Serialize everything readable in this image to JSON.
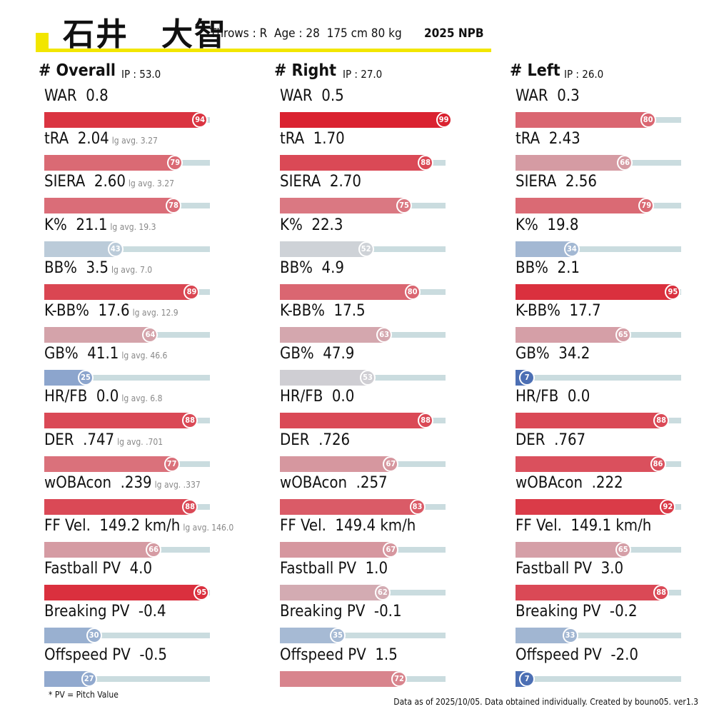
{
  "header": {
    "name": "石井　大智",
    "info": "Throws : R  Age : 28  175 cm 80 kg",
    "season": "2025 NPB"
  },
  "chart_data": {
    "type": "bar",
    "title": "石井　大智",
    "percentile_range": [
      0,
      100
    ],
    "columns": [
      {
        "title": "# Overall",
        "ip": "IP : 53.0",
        "metrics": [
          {
            "label": "WAR  0.8",
            "lg": "",
            "pct": 94
          },
          {
            "label": "tRA  2.04",
            "lg": "lg avg. 3.27",
            "pct": 79
          },
          {
            "label": "SIERA  2.60",
            "lg": "lg avg. 3.27",
            "pct": 78
          },
          {
            "label": "K%  21.1",
            "lg": "lg avg. 19.3",
            "pct": 43
          },
          {
            "label": "BB%  3.5",
            "lg": "lg avg. 7.0",
            "pct": 89
          },
          {
            "label": "K-BB%  17.6",
            "lg": "lg avg. 12.9",
            "pct": 64
          },
          {
            "label": "GB%  41.1",
            "lg": "lg avg. 46.6",
            "pct": 25
          },
          {
            "label": "HR/FB  0.0",
            "lg": "lg avg. 6.8",
            "pct": 88
          },
          {
            "label": "DER  .747",
            "lg": "lg avg. .701",
            "pct": 77
          },
          {
            "label": "wOBAcon  .239",
            "lg": "lg avg. .337",
            "pct": 88
          },
          {
            "label": "FF Vel.  149.2 km/h",
            "lg": "lg avg. 146.0",
            "pct": 66
          },
          {
            "label": "Fastball PV  4.0",
            "lg": "",
            "pct": 95
          },
          {
            "label": "Breaking PV  -0.4",
            "lg": "",
            "pct": 30
          },
          {
            "label": "Offspeed PV  -0.5",
            "lg": "",
            "pct": 27
          }
        ]
      },
      {
        "title": "# Right",
        "ip": "IP : 27.0",
        "metrics": [
          {
            "label": "WAR  0.5",
            "lg": "",
            "pct": 99
          },
          {
            "label": "tRA  1.70",
            "lg": "",
            "pct": 88
          },
          {
            "label": "SIERA  2.70",
            "lg": "",
            "pct": 75
          },
          {
            "label": "K%  22.3",
            "lg": "",
            "pct": 52
          },
          {
            "label": "BB%  4.9",
            "lg": "",
            "pct": 80
          },
          {
            "label": "K-BB%  17.5",
            "lg": "",
            "pct": 63
          },
          {
            "label": "GB%  47.9",
            "lg": "",
            "pct": 53
          },
          {
            "label": "HR/FB  0.0",
            "lg": "",
            "pct": 88
          },
          {
            "label": "DER  .726",
            "lg": "",
            "pct": 67
          },
          {
            "label": "wOBAcon  .257",
            "lg": "",
            "pct": 83
          },
          {
            "label": "FF Vel.  149.4 km/h",
            "lg": "",
            "pct": 67
          },
          {
            "label": "Fastball PV  1.0",
            "lg": "",
            "pct": 62
          },
          {
            "label": "Breaking PV  -0.1",
            "lg": "",
            "pct": 35
          },
          {
            "label": "Offspeed PV  1.5",
            "lg": "",
            "pct": 72
          }
        ]
      },
      {
        "title": "# Left",
        "ip": "IP : 26.0",
        "metrics": [
          {
            "label": "WAR  0.3",
            "lg": "",
            "pct": 80
          },
          {
            "label": "tRA  2.43",
            "lg": "",
            "pct": 66
          },
          {
            "label": "SIERA  2.56",
            "lg": "",
            "pct": 79
          },
          {
            "label": "K%  19.8",
            "lg": "",
            "pct": 34
          },
          {
            "label": "BB%  2.1",
            "lg": "",
            "pct": 95
          },
          {
            "label": "K-BB%  17.7",
            "lg": "",
            "pct": 65
          },
          {
            "label": "GB%  34.2",
            "lg": "",
            "pct": 7
          },
          {
            "label": "HR/FB  0.0",
            "lg": "",
            "pct": 88
          },
          {
            "label": "DER  .767",
            "lg": "",
            "pct": 86
          },
          {
            "label": "wOBAcon  .222",
            "lg": "",
            "pct": 92
          },
          {
            "label": "FF Vel.  149.1 km/h",
            "lg": "",
            "pct": 65
          },
          {
            "label": "Fastball PV  3.0",
            "lg": "",
            "pct": 88
          },
          {
            "label": "Breaking PV  -0.2",
            "lg": "",
            "pct": 33
          },
          {
            "label": "Offspeed PV  -2.0",
            "lg": "",
            "pct": 7
          }
        ]
      }
    ]
  },
  "footnote": "* PV = Pitch Value",
  "credit": "Data as of 2025/10/05. Data obtained individually. Created by bouno05.  ver1.3"
}
